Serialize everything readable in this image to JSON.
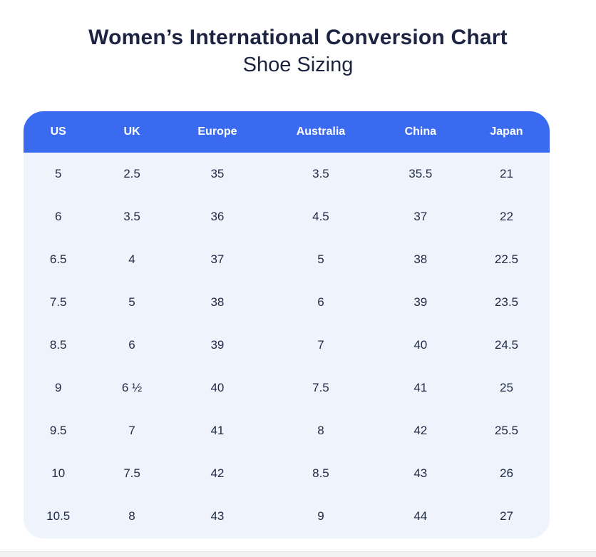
{
  "page": {
    "title": "Women’s International Conversion Chart",
    "subtitle": "Shoe Sizing"
  },
  "colors": {
    "header_bg": "#3A6AF0",
    "body_bg": "#EFF4FC",
    "title_text": "#1C2442",
    "cell_text": "#212B45",
    "header_text": "#FFFFFF",
    "footer_strip": "#F2F2F2"
  },
  "chart_data": {
    "type": "table",
    "title": "Women’s International Conversion Chart",
    "subtitle": "Shoe Sizing",
    "columns": [
      "US",
      "UK",
      "Europe",
      "Australia",
      "China",
      "Japan"
    ],
    "rows": [
      [
        "5",
        "2.5",
        "35",
        "3.5",
        "35.5",
        "21"
      ],
      [
        "6",
        "3.5",
        "36",
        "4.5",
        "37",
        "22"
      ],
      [
        "6.5",
        "4",
        "37",
        "5",
        "38",
        "22.5"
      ],
      [
        "7.5",
        "5",
        "38",
        "6",
        "39",
        "23.5"
      ],
      [
        "8.5",
        "6",
        "39",
        "7",
        "40",
        "24.5"
      ],
      [
        "9",
        "6 ½",
        "40",
        "7.5",
        "41",
        "25"
      ],
      [
        "9.5",
        "7",
        "41",
        "8",
        "42",
        "25.5"
      ],
      [
        "10",
        "7.5",
        "42",
        "8.5",
        "43",
        "26"
      ],
      [
        "10.5",
        "8",
        "43",
        "9",
        "44",
        "27"
      ]
    ],
    "layout": {
      "header_style": "solid blue bar, white bold labels, rounded top corners",
      "body_style": "light blue panel, rounded bottom corners, no gridlines",
      "grid": false
    }
  }
}
